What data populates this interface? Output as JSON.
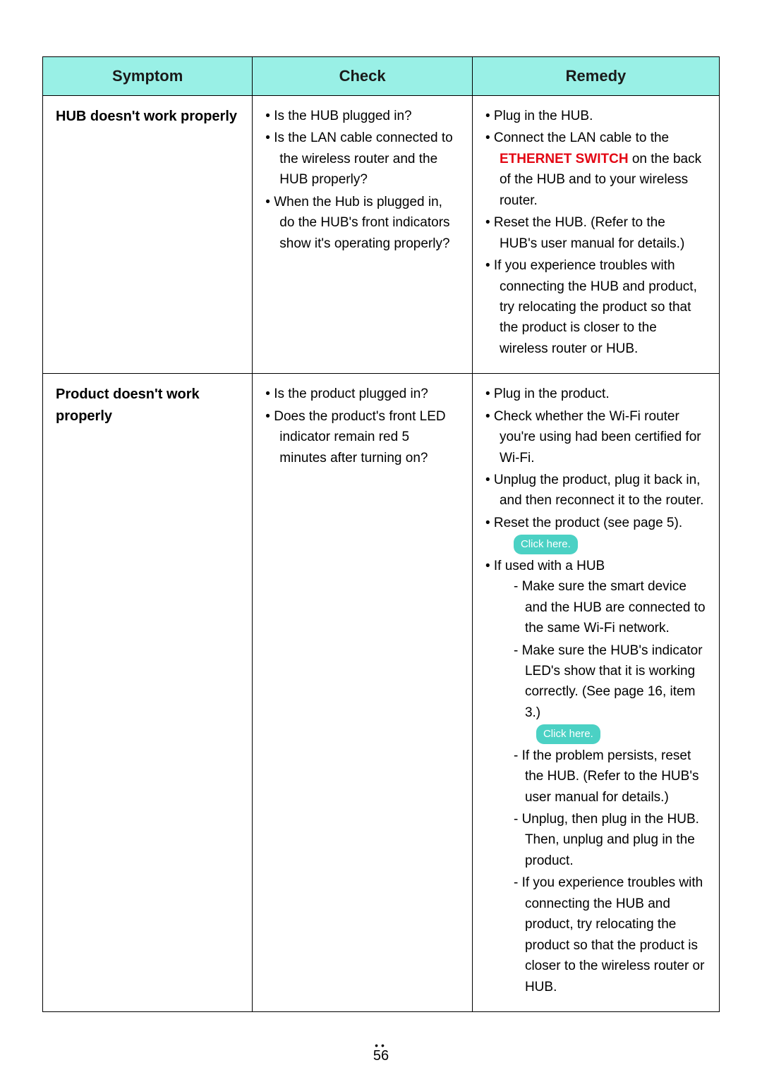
{
  "headers": {
    "symptom": "Symptom",
    "check": "Check",
    "remedy": "Remedy"
  },
  "rows": [
    {
      "symptom": "HUB doesn't work properly",
      "check": [
        "Is the HUB plugged in?",
        "Is the LAN cable connected to the wireless router and the HUB properly?",
        "When the Hub is plugged in, do the HUB's front indicators show it's operating properly?"
      ],
      "remedy": [
        {
          "text": "Plug in the HUB."
        },
        {
          "html": "Connect the LAN cable to the <span class=\"red\">ETHERNET SWITCH</span> on the back of the HUB and to your wireless router."
        },
        {
          "text": "Reset the HUB. (Refer to the HUB's user manual for details.)"
        },
        {
          "text": "If you experience troubles with connecting the HUB and product, try relocating the product so that the product is closer to the wireless router or HUB."
        }
      ]
    },
    {
      "symptom": "Product doesn't work properly",
      "check": [
        "Is the product plugged in?",
        "Does the product's front LED indicator remain red 5 minutes after turning on?"
      ],
      "remedy": [
        {
          "text": "Plug in the product."
        },
        {
          "text": "Check whether the Wi-Fi router you're using had been certified for Wi-Fi."
        },
        {
          "text": "Unplug the product, plug it back in, and then reconnect it to the router."
        },
        {
          "text": "Reset the product (see page 5).",
          "pill": "Click here."
        },
        {
          "text": "If used with a HUB",
          "sub": [
            "Make sure the smart device and the HUB are connected to the same Wi-Fi network.",
            {
              "text": "Make sure the HUB's indicator LED's show that it is working correctly. (See page 16, item 3.)",
              "pill": "Click here."
            },
            "If the problem persists, reset the HUB. (Refer to the HUB's user manual for details.)",
            "Unplug, then plug in the HUB. Then, unplug and plug in the product.",
            "If you experience troubles with connecting the HUB and product, try relocating the product so that the product is closer to the wireless router or HUB."
          ]
        }
      ]
    }
  ],
  "pageNumber": "56",
  "colWidths": [
    "31%",
    "32.5%",
    "36.5%"
  ]
}
